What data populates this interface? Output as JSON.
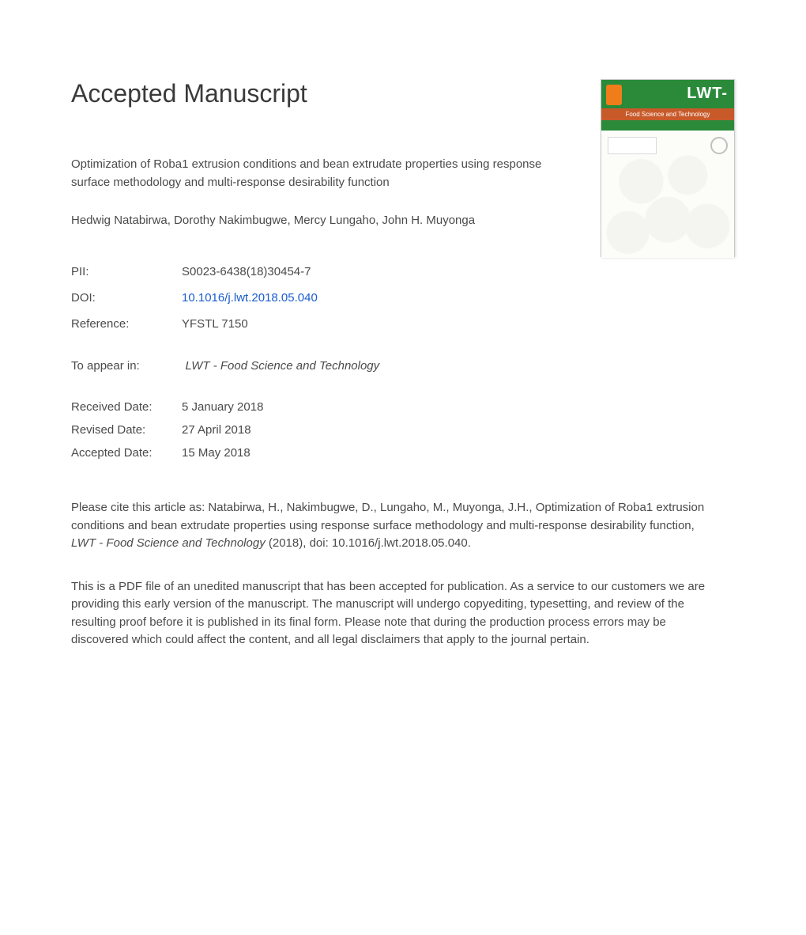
{
  "heading": "Accepted Manuscript",
  "title": "Optimization of Roba1 extrusion conditions and bean extrudate properties using response surface methodology and multi-response desirability function",
  "authors": "Hedwig Natabirwa, Dorothy Nakimbugwe, Mercy Lungaho, John H. Muyonga",
  "meta": {
    "pii_label": "PII:",
    "pii_value": "S0023-6438(18)30454-7",
    "doi_label": "DOI:",
    "doi_value": "10.1016/j.lwt.2018.05.040",
    "ref_label": "Reference:",
    "ref_value": "YFSTL 7150"
  },
  "appear": {
    "label": "To appear in:",
    "journal": "LWT - Food Science and Technology"
  },
  "dates": {
    "received_label": "Received Date:",
    "received_value": "5 January 2018",
    "revised_label": "Revised Date:",
    "revised_value": "27 April 2018",
    "accepted_label": "Accepted Date:",
    "accepted_value": "15 May 2018"
  },
  "citation": {
    "prefix": "Please cite this article as: Natabirwa, H., Nakimbugwe, D., Lungaho, M., Muyonga, J.H., Optimization of Roba1 extrusion conditions and bean extrudate properties using response surface methodology and multi-response desirability function, ",
    "journal": "LWT - Food Science and Technology",
    "suffix": " (2018), doi: 10.1016/j.lwt.2018.05.040."
  },
  "disclaimer": "This is a PDF file of an unedited manuscript that has been accepted for publication. As a service to our customers we are providing this early version of the manuscript. The manuscript will undergo copyediting, typesetting, and review of the resulting proof before it is published in its final form. Please note that during the production process errors may be discovered which could affect the content, and all legal disclaimers that apply to the journal pertain.",
  "cover": {
    "title": "LWT-",
    "subtitle": "Food Science and Technology",
    "header_color": "#2a8a3a",
    "accent_color": "#c85a2a",
    "logo_color": "#f07d1a"
  },
  "colors": {
    "text": "#4a4a4a",
    "link": "#1a5cce",
    "background": "#ffffff"
  }
}
